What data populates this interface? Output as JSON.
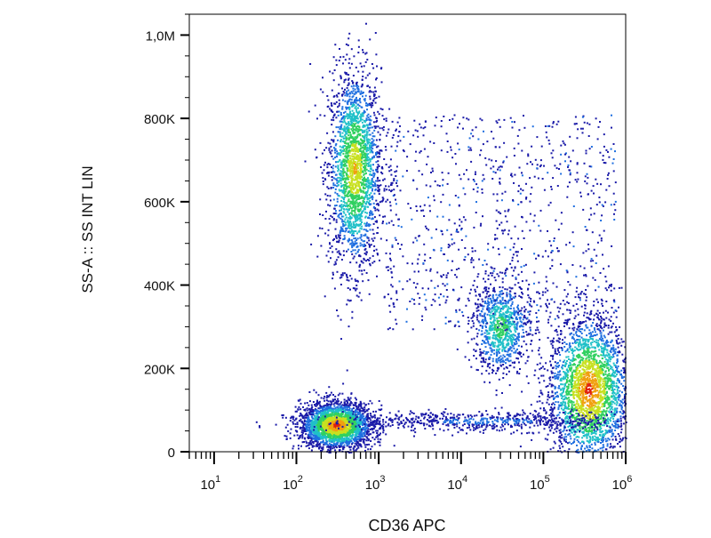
{
  "chart_data": {
    "type": "scatter",
    "subtype": "flow-cytometry-density-dot-plot",
    "title": "",
    "xlabel": "CD36 APC",
    "ylabel": "SS-A :: SS INT LIN",
    "x_scale": "log",
    "y_scale": "linear",
    "xlim": [
      5,
      1000000
    ],
    "ylim": [
      0,
      1050000
    ],
    "x_ticks": [
      {
        "base": "10",
        "exp": "1",
        "value": 10
      },
      {
        "base": "10",
        "exp": "2",
        "value": 100
      },
      {
        "base": "10",
        "exp": "3",
        "value": 1000
      },
      {
        "base": "10",
        "exp": "4",
        "value": 10000
      },
      {
        "base": "10",
        "exp": "5",
        "value": 100000
      },
      {
        "base": "10",
        "exp": "6",
        "value": 1000000
      }
    ],
    "y_ticks": [
      {
        "label": "0",
        "value": 0
      },
      {
        "label": "200K",
        "value": 200000
      },
      {
        "label": "400K",
        "value": 400000
      },
      {
        "label": "600K",
        "value": 600000
      },
      {
        "label": "800K",
        "value": 800000
      },
      {
        "label": "1,0M",
        "value": 1000000
      }
    ],
    "grid": false,
    "colormap": [
      "#1a1aa8",
      "#1f6fe0",
      "#20c0c8",
      "#30d060",
      "#c8e020",
      "#f0a010",
      "#e02010"
    ],
    "populations": [
      {
        "x_center": 500,
        "y_center": 680000,
        "x_spread_decades": 0.16,
        "y_spread": 120000,
        "density": "high"
      },
      {
        "x_center": 300,
        "y_center": 65000,
        "x_spread_decades": 0.22,
        "y_spread": 28000,
        "density": "very high"
      },
      {
        "x_center": 30000,
        "y_center": 300000,
        "x_spread_decades": 0.17,
        "y_spread": 55000,
        "density": "medium"
      },
      {
        "x_center": 350000,
        "y_center": 150000,
        "x_spread_decades": 0.25,
        "y_spread": 90000,
        "density": "very high"
      },
      {
        "x_center": 20000,
        "y_center": 75000,
        "x_spread_decades": 1.0,
        "y_spread": 12000,
        "density": "low"
      },
      {
        "x_center": 30000,
        "y_center": 550000,
        "x_spread_decades": 1.4,
        "y_spread": 260000,
        "density": "sparse"
      }
    ]
  }
}
